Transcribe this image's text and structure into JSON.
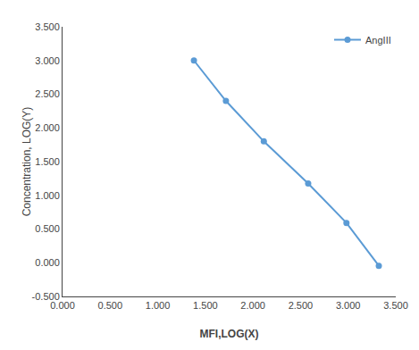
{
  "chart_data": {
    "type": "line",
    "x": [
      1.38,
      1.716,
      2.114,
      2.58,
      2.982,
      3.322
    ],
    "series": [
      {
        "name": "AngIII",
        "color": "#5b9bd5",
        "marker": "circle",
        "values": [
          3.0,
          2.4,
          1.8,
          1.176,
          0.591,
          -0.046
        ]
      }
    ],
    "xlabel": "MFI,LOG(X)",
    "ylabel": "Concentration, LOG(Y)",
    "xlim": [
      0.0,
      3.5
    ],
    "ylim": [
      -0.5,
      3.5
    ],
    "xticks": [
      {
        "value": 0.0,
        "label": "0.000"
      },
      {
        "value": 0.5,
        "label": "0.500"
      },
      {
        "value": 1.0,
        "label": "1.000"
      },
      {
        "value": 1.5,
        "label": "1.500"
      },
      {
        "value": 2.0,
        "label": "2.000"
      },
      {
        "value": 2.5,
        "label": "2.500"
      },
      {
        "value": 3.0,
        "label": "3.000"
      },
      {
        "value": 3.5,
        "label": "3.500"
      }
    ],
    "yticks": [
      {
        "value": -0.5,
        "label": "-0.500"
      },
      {
        "value": 0.0,
        "label": "0.000"
      },
      {
        "value": 0.5,
        "label": "0.500"
      },
      {
        "value": 1.0,
        "label": "1.000"
      },
      {
        "value": 1.5,
        "label": "1.500"
      },
      {
        "value": 2.0,
        "label": "2.000"
      },
      {
        "value": 2.5,
        "label": "2.500"
      },
      {
        "value": 3.0,
        "label": "3.000"
      },
      {
        "value": 3.5,
        "label": "3.500"
      }
    ],
    "grid": false,
    "legend": "upper right"
  }
}
